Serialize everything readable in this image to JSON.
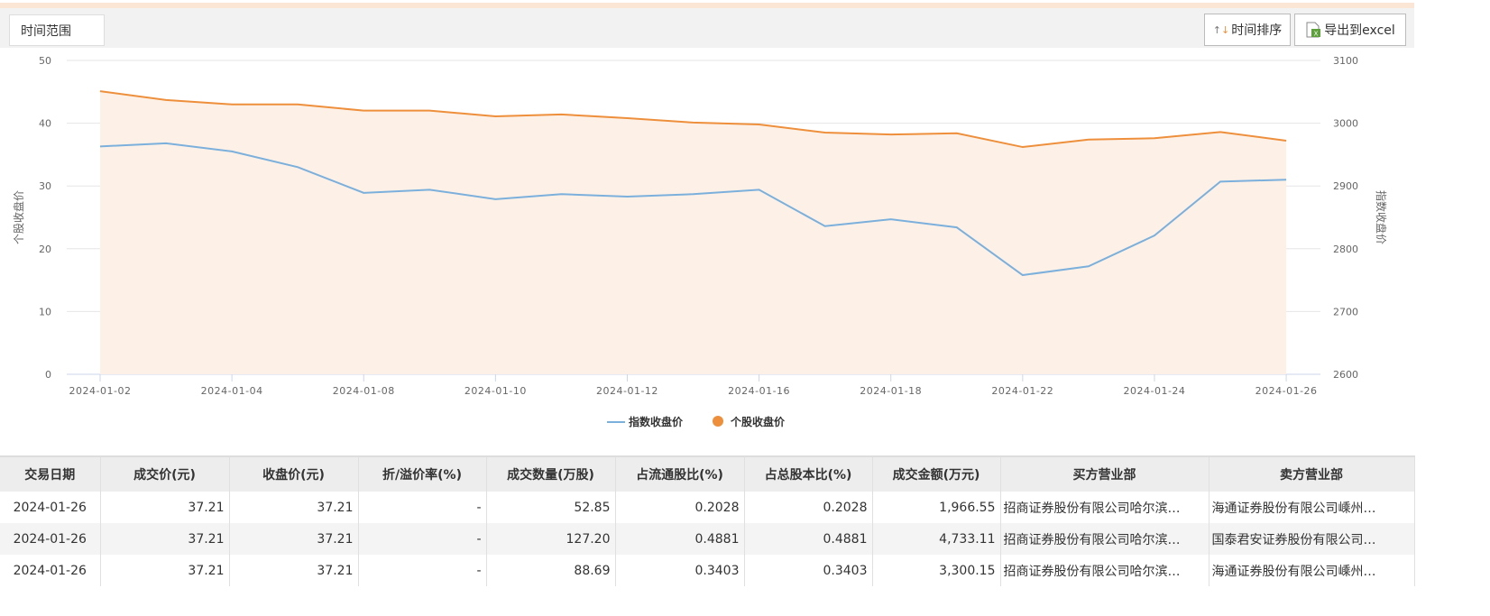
{
  "toolbar": {
    "range_label": "时间范围",
    "sort_label": "时间排序",
    "export_label": "导出到excel"
  },
  "chart_data": {
    "type": "line",
    "x": [
      "2024-01-02",
      "2024-01-03",
      "2024-01-04",
      "2024-01-05",
      "2024-01-08",
      "2024-01-09",
      "2024-01-10",
      "2024-01-11",
      "2024-01-12",
      "2024-01-15",
      "2024-01-16",
      "2024-01-17",
      "2024-01-18",
      "2024-01-19",
      "2024-01-22",
      "2024-01-23",
      "2024-01-24",
      "2024-01-25",
      "2024-01-26"
    ],
    "xticks": [
      "2024-01-02",
      "2024-01-04",
      "2024-01-08",
      "2024-01-10",
      "2024-01-12",
      "2024-01-16",
      "2024-01-18",
      "2024-01-22",
      "2024-01-24",
      "2024-01-26"
    ],
    "series": [
      {
        "name": "指数收盘价",
        "axis": "right",
        "color": "#7cb0dc",
        "values": [
          2963,
          2968,
          2955,
          2930,
          2889,
          2894,
          2879,
          2887,
          2883,
          2887,
          2894,
          2836,
          2847,
          2834,
          2758,
          2772,
          2821,
          2907,
          2910
        ]
      },
      {
        "name": "个股收盘价",
        "axis": "left",
        "color": "#ee8f3c",
        "area": true,
        "values": [
          45.1,
          43.7,
          43.0,
          43.0,
          42.0,
          42.0,
          41.1,
          41.4,
          40.8,
          40.1,
          39.8,
          38.5,
          38.2,
          38.4,
          36.2,
          37.4,
          37.6,
          38.6,
          37.21
        ]
      }
    ],
    "ylabel": "个股收盘价",
    "y2label": "指数收盘价",
    "ylim": [
      0,
      50
    ],
    "yticks": [
      "0",
      "10",
      "20",
      "30",
      "40",
      "50"
    ],
    "y2lim": [
      2600,
      3100
    ],
    "y2ticks": [
      "2600",
      "2700",
      "2800",
      "2900",
      "3000",
      "3100"
    ],
    "grid": true,
    "legend": "bottom"
  },
  "table": {
    "headers": [
      "交易日期",
      "成交价(元)",
      "收盘价(元)",
      "折/溢价率(%)",
      "成交数量(万股)",
      "占流通股比(%)",
      "占总股本比(%)",
      "成交金额(万元)",
      "买方营业部",
      "卖方营业部"
    ],
    "rows": [
      [
        "2024-01-26",
        "37.21",
        "37.21",
        "-",
        "52.85",
        "0.2028",
        "0.2028",
        "1,966.55",
        "招商证券股份有限公司哈尔滨…",
        "海通证券股份有限公司嵊州…"
      ],
      [
        "2024-01-26",
        "37.21",
        "37.21",
        "-",
        "127.20",
        "0.4881",
        "0.4881",
        "4,733.11",
        "招商证券股份有限公司哈尔滨…",
        "国泰君安证券股份有限公司…"
      ],
      [
        "2024-01-26",
        "37.21",
        "37.21",
        "-",
        "88.69",
        "0.3403",
        "0.3403",
        "3,300.15",
        "招商证券股份有限公司哈尔滨…",
        "海通证券股份有限公司嵊州…"
      ]
    ]
  }
}
